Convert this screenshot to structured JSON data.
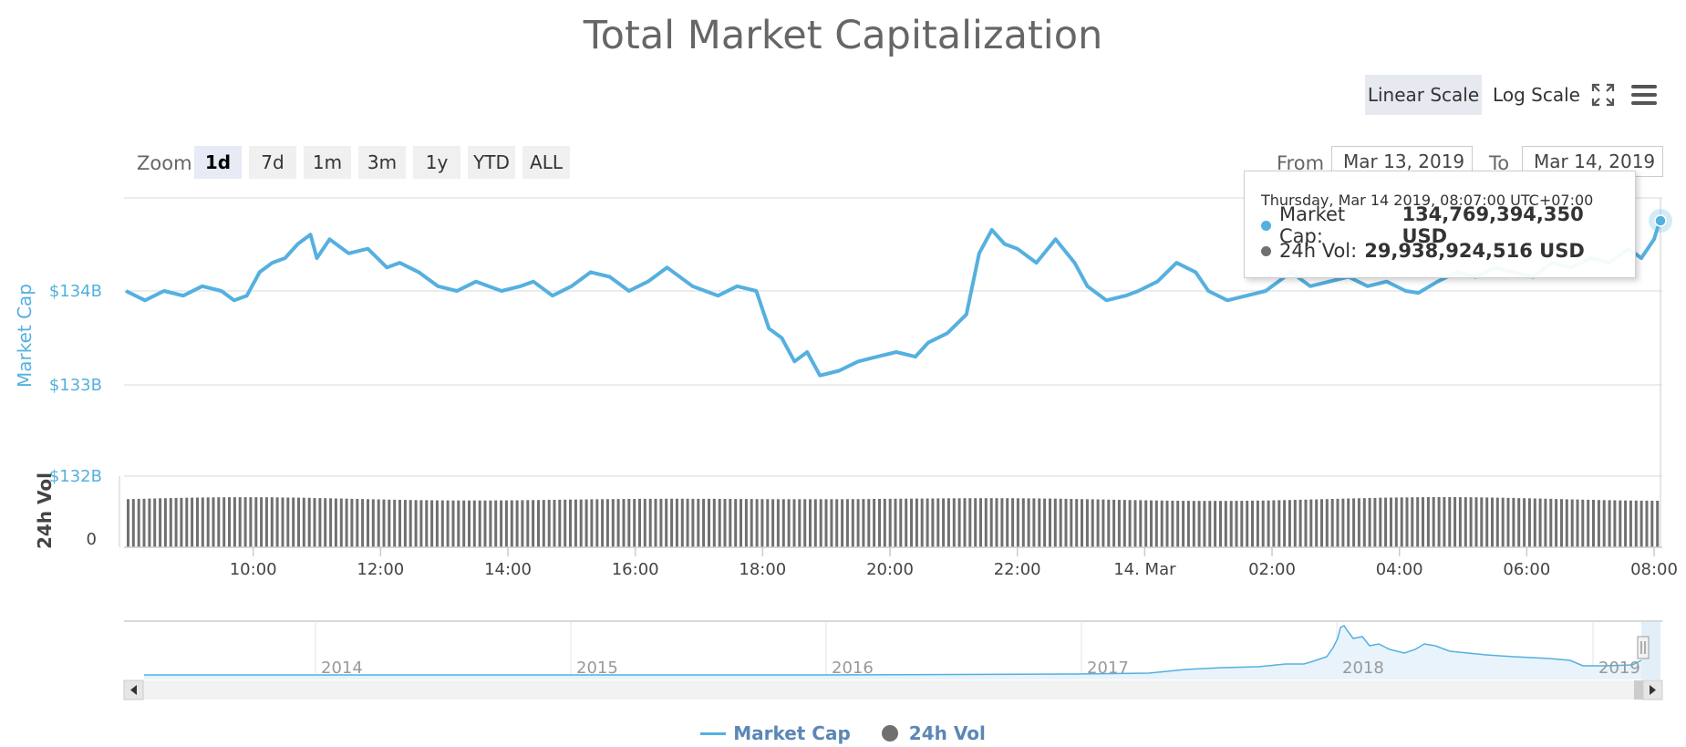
{
  "title": "Total Market Capitalization",
  "scale_buttons": {
    "linear": "Linear Scale",
    "log": "Log Scale"
  },
  "zoom": {
    "label": "Zoom",
    "buttons": [
      "1d",
      "7d",
      "1m",
      "3m",
      "1y",
      "YTD",
      "ALL"
    ],
    "active": "1d"
  },
  "range": {
    "from_label": "From",
    "from_value": "Mar 13, 2019",
    "to_label": "To",
    "to_value": "Mar 14, 2019"
  },
  "tooltip": {
    "header": "Thursday, Mar 14 2019, 08:07:00 UTC+07:00",
    "rows": [
      {
        "label": "Market Cap:",
        "value": "134,769,394,350 USD",
        "color": "#55b0df"
      },
      {
        "label": "24h Vol:",
        "value": "29,938,924,516 USD",
        "color": "#707070"
      }
    ]
  },
  "colors": {
    "market_cap": "#55b0df",
    "volume": "#707070",
    "navigator_fill": "#e8f3fb"
  },
  "legend": [
    "Market Cap",
    "24h Vol"
  ],
  "chart_data": {
    "type": "line",
    "title": "Total Market Capitalization",
    "y_axis_label": "Market Cap",
    "y_ticks": [
      "$132B",
      "$133B",
      "$134B"
    ],
    "y_tick_values": [
      132,
      133,
      134
    ],
    "ylim_billions": [
      132,
      135
    ],
    "volume_axis_label": "24h Vol",
    "volume_ticks": [
      "0"
    ],
    "x_ticks": [
      {
        "label": "10:00",
        "h": 2
      },
      {
        "label": "12:00",
        "h": 4
      },
      {
        "label": "14:00",
        "h": 6
      },
      {
        "label": "16:00",
        "h": 8
      },
      {
        "label": "18:00",
        "h": 10
      },
      {
        "label": "20:00",
        "h": 12
      },
      {
        "label": "22:00",
        "h": 14
      },
      {
        "label": "14. Mar",
        "h": 16
      },
      {
        "label": "02:00",
        "h": 18
      },
      {
        "label": "04:00",
        "h": 20
      },
      {
        "label": "06:00",
        "h": 22
      },
      {
        "label": "08:00",
        "h": 24
      }
    ],
    "x_range_hours": [
      0,
      24.1
    ],
    "series": [
      {
        "name": "Market Cap",
        "unit": "USD billions",
        "points": [
          [
            0.0,
            134.0
          ],
          [
            0.3,
            133.9
          ],
          [
            0.6,
            134.0
          ],
          [
            0.9,
            133.95
          ],
          [
            1.2,
            134.05
          ],
          [
            1.5,
            134.0
          ],
          [
            1.7,
            133.9
          ],
          [
            1.9,
            133.95
          ],
          [
            2.1,
            134.2
          ],
          [
            2.3,
            134.3
          ],
          [
            2.5,
            134.35
          ],
          [
            2.7,
            134.5
          ],
          [
            2.9,
            134.6
          ],
          [
            3.0,
            134.35
          ],
          [
            3.2,
            134.55
          ],
          [
            3.5,
            134.4
          ],
          [
            3.8,
            134.45
          ],
          [
            4.1,
            134.25
          ],
          [
            4.3,
            134.3
          ],
          [
            4.6,
            134.2
          ],
          [
            4.9,
            134.05
          ],
          [
            5.2,
            134.0
          ],
          [
            5.5,
            134.1
          ],
          [
            5.9,
            134.0
          ],
          [
            6.2,
            134.05
          ],
          [
            6.4,
            134.1
          ],
          [
            6.7,
            133.95
          ],
          [
            7.0,
            134.05
          ],
          [
            7.3,
            134.2
          ],
          [
            7.6,
            134.15
          ],
          [
            7.9,
            134.0
          ],
          [
            8.2,
            134.1
          ],
          [
            8.5,
            134.25
          ],
          [
            8.9,
            134.05
          ],
          [
            9.3,
            133.95
          ],
          [
            9.6,
            134.05
          ],
          [
            9.9,
            134.0
          ],
          [
            10.1,
            133.6
          ],
          [
            10.3,
            133.5
          ],
          [
            10.5,
            133.25
          ],
          [
            10.7,
            133.35
          ],
          [
            10.9,
            133.1
          ],
          [
            11.2,
            133.15
          ],
          [
            11.5,
            133.25
          ],
          [
            11.8,
            133.3
          ],
          [
            12.1,
            133.35
          ],
          [
            12.4,
            133.3
          ],
          [
            12.6,
            133.45
          ],
          [
            12.9,
            133.55
          ],
          [
            13.2,
            133.75
          ],
          [
            13.4,
            134.4
          ],
          [
            13.6,
            134.65
          ],
          [
            13.8,
            134.5
          ],
          [
            14.0,
            134.45
          ],
          [
            14.3,
            134.3
          ],
          [
            14.6,
            134.55
          ],
          [
            14.9,
            134.3
          ],
          [
            15.1,
            134.05
          ],
          [
            15.4,
            133.9
          ],
          [
            15.7,
            133.95
          ],
          [
            15.9,
            134.0
          ],
          [
            16.2,
            134.1
          ],
          [
            16.5,
            134.3
          ],
          [
            16.8,
            134.2
          ],
          [
            17.0,
            134.0
          ],
          [
            17.3,
            133.9
          ],
          [
            17.6,
            133.95
          ],
          [
            17.9,
            134.0
          ],
          [
            18.3,
            134.2
          ],
          [
            18.6,
            134.05
          ],
          [
            18.9,
            134.1
          ],
          [
            19.2,
            134.15
          ],
          [
            19.5,
            134.05
          ],
          [
            19.8,
            134.1
          ],
          [
            20.1,
            134.0
          ],
          [
            20.3,
            133.98
          ],
          [
            20.6,
            134.1
          ],
          [
            20.9,
            134.2
          ],
          [
            21.2,
            134.15
          ],
          [
            21.5,
            134.25
          ],
          [
            21.8,
            134.2
          ],
          [
            22.1,
            134.15
          ],
          [
            22.4,
            134.3
          ],
          [
            22.7,
            134.25
          ],
          [
            23.0,
            134.35
          ],
          [
            23.3,
            134.3
          ],
          [
            23.6,
            134.45
          ],
          [
            23.8,
            134.35
          ],
          [
            24.0,
            134.55
          ],
          [
            24.1,
            134.77
          ]
        ]
      },
      {
        "name": "24h Vol",
        "unit": "USD billions",
        "range_billions": [
          29.6,
          30.05
        ]
      }
    ],
    "navigator": {
      "x_ticks": [
        "2014",
        "2015",
        "2016",
        "2017",
        "2018",
        "2019"
      ]
    }
  }
}
